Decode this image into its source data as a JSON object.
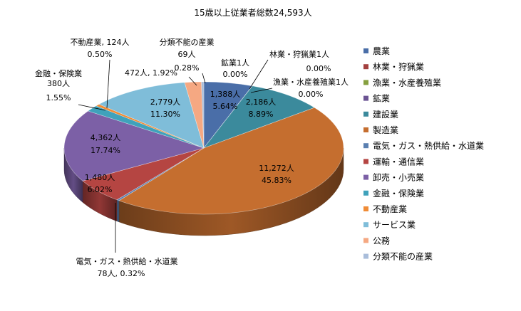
{
  "chart_data": {
    "type": "pie",
    "title": "15歳以上従業者総数24,593人",
    "series": [
      {
        "name": "農業",
        "value": 1388,
        "percent": 5.64,
        "color": "#4A6EA8",
        "count_label": "1,388人",
        "pct_label": "5.64%"
      },
      {
        "name": "林業・狩猟業",
        "value": 1,
        "percent": 0.0,
        "color": "#A3403F",
        "count_label": "林業・狩猟業1人",
        "pct_label": "0.00%"
      },
      {
        "name": "漁業・水産養殖業",
        "value": 1,
        "percent": 0.0,
        "color": "#86A040",
        "count_label": "漁業・水産養殖業1人",
        "pct_label": "0.00%"
      },
      {
        "name": "鉱業",
        "value": 1,
        "percent": 0.0,
        "color": "#6B5393",
        "count_label": "鉱業1人",
        "pct_label": "0.00%"
      },
      {
        "name": "建設業",
        "value": 2186,
        "percent": 8.89,
        "color": "#3B8A9C",
        "count_label": "2,186人",
        "pct_label": "8.89%"
      },
      {
        "name": "製造業",
        "value": 11272,
        "percent": 45.83,
        "color": "#C56E2F",
        "count_label": "11,272人",
        "pct_label": "45.83%"
      },
      {
        "name": "電気・ガス・熱供給・水道業",
        "value": 78,
        "percent": 0.32,
        "color": "#5A7FB0",
        "count_label": "電気・ガス・熱供給・水道業",
        "pct_label": "78人, 0.32%"
      },
      {
        "name": "運輸・通信業",
        "value": 1480,
        "percent": 6.02,
        "color": "#B54542",
        "count_label": "1,480人",
        "pct_label": "6.02%"
      },
      {
        "name": "卸売・小売業",
        "value": 4362,
        "percent": 17.74,
        "color": "#7C60A6",
        "count_label": "4,362人",
        "pct_label": "17.74%"
      },
      {
        "name": "金融・保険業",
        "value": 380,
        "percent": 1.55,
        "color": "#3FA2BB",
        "count_label": "金融・保険業\n380人",
        "pct_label": "1.55%"
      },
      {
        "name": "不動産業",
        "value": 124,
        "percent": 0.5,
        "color": "#F08C36",
        "count_label": "不動産業, 124人",
        "pct_label": "0.50%"
      },
      {
        "name": "サービス業",
        "value": 2779,
        "percent": 11.3,
        "color": "#7FBDD9",
        "count_label": "2,779人",
        "pct_label": "11.30%"
      },
      {
        "name": "公務",
        "value": 472,
        "percent": 1.92,
        "color": "#F5A882",
        "count_label": "472人, 1.92%",
        "pct_label": ""
      },
      {
        "name": "分類不能の産業",
        "value": 69,
        "percent": 0.28,
        "color": "#A9BDDA",
        "count_label": "分類不能の産業\n69人",
        "pct_label": "0.28%"
      }
    ]
  }
}
